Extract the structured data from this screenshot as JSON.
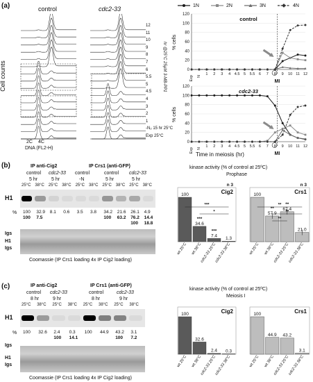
{
  "a": {
    "label": "(a)",
    "hist": {
      "col_control": "control",
      "col_mutant": "cdc2-33",
      "ylabel": "Cell counts",
      "xlabel": "DNA (FL2-H)",
      "peak_2c": "2C",
      "peak_4c": "4C",
      "row_labels": [
        "12",
        "11",
        "10",
        "9",
        "8",
        "7",
        "6",
        "5.5",
        "5",
        "4.5",
        "4",
        "3",
        "2",
        "1",
        "-N₂ 15 hr 25°C",
        "Exp 25°C"
      ],
      "rotated_note": "hr @25°C 25µM 3-MB-PP1"
    },
    "legend": [
      "1N",
      "2N",
      "3N",
      "4N"
    ],
    "colors": {
      "n1": "#1a1a1a",
      "n2": "#8a8a8a",
      "n3": "#6e6e6e",
      "n4": "#333333"
    },
    "mi_label": "MI",
    "xlabel": "Time in meiosis (hr)"
  },
  "b": {
    "label": "(b)",
    "gel_headers": [
      "IP anti-Cig2",
      "IP Crs1 (anti-GFP)"
    ],
    "sub_headers": [
      "control",
      "cdc2-33",
      "control",
      "control",
      "cdc2-33"
    ],
    "time_headers": [
      "5 hr",
      "5 hr",
      "-N",
      "5 hr",
      "5 hr"
    ],
    "temps": [
      "25°C",
      "38°C",
      "25°C",
      "38°C",
      "25°C",
      "38°C",
      "25°C",
      "38°C",
      "25°C",
      "38°C"
    ],
    "h1": "H1",
    "pct": "%",
    "row1": [
      "100",
      "32.9",
      "8.1",
      "0.6",
      "3.5",
      "3.8",
      "34.2",
      "21.6",
      "26.1",
      "4.9"
    ],
    "row2": [
      "100",
      "7.5",
      "",
      "",
      "",
      "",
      "100",
      "63.2",
      "76.2",
      "14.4"
    ],
    "row3": [
      "",
      "",
      "",
      "",
      "",
      "",
      "",
      "",
      "100",
      "18.8"
    ],
    "igs": "Igs",
    "coomassie": "Coomassie (IP Crs1 loading 4x IP Cig2 loading)",
    "kinase_title": "kinase activity (% of control at 25ºC)",
    "phase": "Prophase",
    "n3": "n 3"
  },
  "c": {
    "label": "(c)",
    "gel_headers": [
      "IP anti-Cig2",
      "IP Crs1 (anti-GFP)"
    ],
    "sub_headers": [
      "control",
      "cdc2-33",
      "control",
      "cdc2-33"
    ],
    "time_headers": [
      "8 hr",
      "9 hr",
      "8 hr",
      "9 hr"
    ],
    "temps": [
      "25°C",
      "38°C",
      "25°C",
      "38°C",
      "25°C",
      "38°C",
      "25°C",
      "38°C"
    ],
    "h1": "H1",
    "pct": "%",
    "row1": [
      "100",
      "32.6",
      "2.4",
      "0.3",
      "100",
      "44.9",
      "43.2",
      "3.1"
    ],
    "row2": [
      "",
      "",
      "100",
      "14.1",
      "",
      "",
      "100",
      "7.2"
    ],
    "igs": "Igs",
    "coomassie": "Coomassie (IP Crs1 loading 4x IP Cig2 loading)",
    "kinase_title": "kinase activity (% of control at 25ºC)",
    "phase": "Meiosis I"
  },
  "chart_data": [
    {
      "type": "line",
      "title": "control",
      "ylabel": "% cells",
      "xlabel": "Time in meiosis (hr)",
      "ylim": [
        0,
        120
      ],
      "x": [
        "Exp",
        "N",
        "1",
        "2",
        "3",
        "4",
        "4.5",
        "5",
        "5.5",
        "6",
        "7",
        "8",
        "9",
        "10",
        "11",
        "12"
      ],
      "series": [
        {
          "name": "1N",
          "values": [
            0,
            0,
            0,
            0,
            0,
            0,
            0,
            0,
            0,
            0,
            0,
            0,
            18,
            25,
            32,
            30
          ]
        },
        {
          "name": "2N",
          "values": [
            0,
            0,
            0,
            0,
            0,
            0,
            0,
            0,
            0,
            0,
            0,
            0,
            36,
            25,
            22,
            20
          ]
        },
        {
          "name": "3N",
          "values": [
            0,
            0,
            0,
            0,
            0,
            0,
            0,
            0,
            0,
            0,
            0,
            0,
            5,
            3,
            2,
            2
          ]
        },
        {
          "name": "4N",
          "values": [
            0,
            0,
            0,
            0,
            0,
            0,
            0,
            0,
            0,
            0,
            0,
            0,
            45,
            85,
            95,
            96
          ]
        }
      ],
      "legend_position": "top",
      "annotation": "MI"
    },
    {
      "type": "line",
      "title": "cdc2-33",
      "ylabel": "% cells",
      "xlabel": "Time in meiosis (hr)",
      "ylim": [
        0,
        120
      ],
      "x": [
        "Exp",
        "N",
        "1",
        "2",
        "3",
        "4",
        "4.5",
        "5",
        "5.5",
        "6",
        "7",
        "8",
        "9",
        "10",
        "11",
        "12"
      ],
      "series": [
        {
          "name": "1N",
          "values": [
            100,
            100,
            100,
            100,
            100,
            100,
            100,
            100,
            100,
            100,
            98,
            78,
            40,
            15,
            8,
            5
          ]
        },
        {
          "name": "2N",
          "values": [
            0,
            0,
            0,
            0,
            0,
            0,
            0,
            0,
            0,
            0,
            2,
            20,
            28,
            35,
            20,
            15
          ]
        },
        {
          "name": "3N",
          "values": [
            0,
            0,
            0,
            0,
            0,
            0,
            0,
            0,
            0,
            0,
            0,
            0,
            25,
            15,
            8,
            6
          ]
        },
        {
          "name": "4N",
          "values": [
            0,
            0,
            0,
            0,
            0,
            0,
            0,
            0,
            0,
            0,
            0,
            0,
            15,
            58,
            75,
            78
          ]
        }
      ],
      "annotation": "MI"
    },
    {
      "type": "bar",
      "title": "Cig2",
      "ylim": [
        0,
        120
      ],
      "categories": [
        "wt 25°C",
        "wt 38°C",
        "cdc2-33 25°C",
        "cdc2-33 38°C"
      ],
      "values": [
        100,
        34.6,
        7.4,
        1.3
      ],
      "labels": [
        "100",
        "34.6",
        "7.4",
        "1.3"
      ],
      "stars": [
        "",
        "***",
        "***",
        ""
      ],
      "sig_lines": [
        "***",
        "*"
      ],
      "n": "n 3"
    },
    {
      "type": "bar",
      "title": "Crs1",
      "ylim": [
        0,
        120
      ],
      "categories": [
        "wt 25°C",
        "wt 38°C",
        "cdc2-33 25°C",
        "cdc2-33 38°C"
      ],
      "values": [
        100,
        57.9,
        67.4,
        21.0
      ],
      "labels": [
        "100",
        "57.9",
        "67.4",
        "21.0"
      ],
      "stars": [
        "",
        "**",
        "**",
        ""
      ],
      "sig_lines": [
        "**",
        "**",
        "**"
      ],
      "n": "n 3"
    },
    {
      "type": "bar",
      "title": "Cig2",
      "categories": [
        "wt 25°C",
        "wt 38°C",
        "cdc2-33 25°C",
        "cdc2-33 38°C"
      ],
      "values": [
        100,
        32.6,
        2.4,
        0.3
      ],
      "labels": [
        "100",
        "32.6",
        "2.4",
        "0.3"
      ]
    },
    {
      "type": "bar",
      "title": "Crs1",
      "categories": [
        "wt 25°C",
        "wt 38°C",
        "cdc2-33 25°C",
        "cdc2-33 38°C"
      ],
      "values": [
        100,
        44.9,
        43.2,
        3.1
      ],
      "labels": [
        "100",
        "44.9",
        "43.2",
        "3.1"
      ]
    }
  ]
}
